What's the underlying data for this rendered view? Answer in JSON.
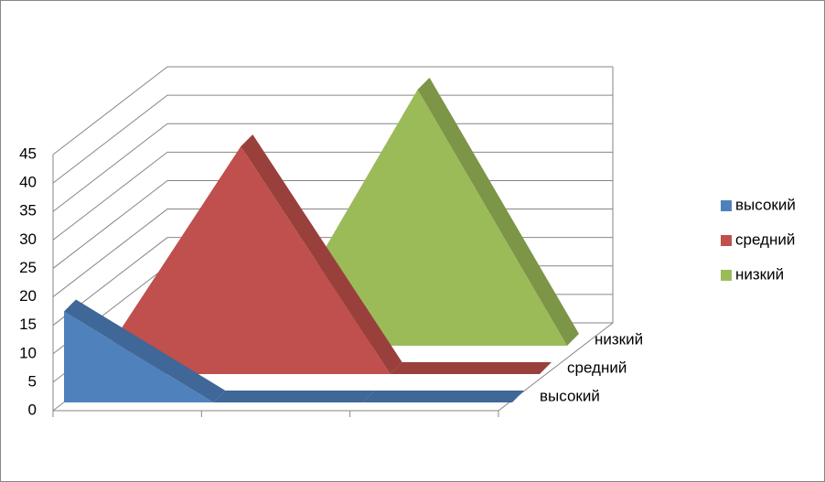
{
  "chart_data": {
    "type": "area3d",
    "categories": [
      null,
      null,
      null,
      null
    ],
    "series": [
      {
        "name": "высокий",
        "color": "#4f81bd",
        "values": [
          16,
          0,
          0,
          0
        ]
      },
      {
        "name": "средний",
        "color": "#c0504d",
        "values": [
          0,
          40,
          0,
          0
        ]
      },
      {
        "name": "низкий",
        "color": "#9bbb59",
        "values": [
          0,
          0,
          45,
          0
        ]
      }
    ],
    "ylim": [
      0,
      45
    ],
    "yticks": [
      0,
      5,
      10,
      15,
      20,
      25,
      30,
      35,
      40,
      45
    ],
    "grid": true,
    "legend": "right"
  }
}
